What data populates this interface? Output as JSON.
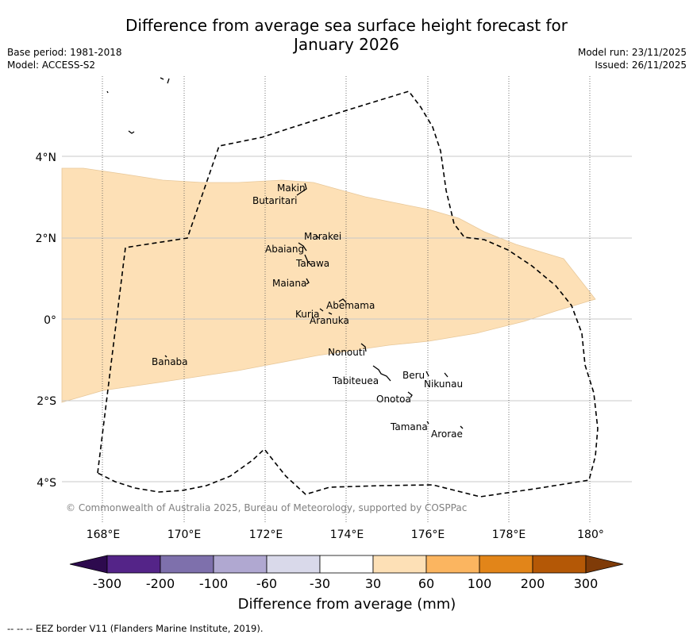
{
  "title": {
    "line1": "Difference from average sea surface height forecast for",
    "line2": "January 2026"
  },
  "meta_left": {
    "base_period": "Base period: 1981-2018",
    "model": "Model: ACCESS-S2"
  },
  "meta_right": {
    "model_run": "Model run: 23/11/2025",
    "issued": "Issued: 26/11/2025"
  },
  "axes": {
    "lon_ticks": [
      "168°E",
      "170°E",
      "172°E",
      "174°E",
      "176°E",
      "178°E",
      "180°"
    ],
    "lat_ticks": [
      "4°N",
      "2°N",
      "0°",
      "2°S",
      "4°S"
    ]
  },
  "islands": [
    {
      "name": "Makin"
    },
    {
      "name": "Butaritari"
    },
    {
      "name": "Marakei"
    },
    {
      "name": "Abaiang"
    },
    {
      "name": "Tarawa"
    },
    {
      "name": "Maiana"
    },
    {
      "name": "Abemama"
    },
    {
      "name": "Kuria"
    },
    {
      "name": "Aranuka"
    },
    {
      "name": "Nonouti"
    },
    {
      "name": "Banaba"
    },
    {
      "name": "Tabiteuea"
    },
    {
      "name": "Beru"
    },
    {
      "name": "Nikunau"
    },
    {
      "name": "Onotoa"
    },
    {
      "name": "Tamana"
    },
    {
      "name": "Arorae"
    }
  ],
  "copyright": "© Commonwealth of Australia 2025, Bureau of Meteorology, supported by COSPPac",
  "colorbar": {
    "label": "Difference from average (mm)",
    "ticks": [
      "-300",
      "-200",
      "-100",
      "-60",
      "-30",
      "30",
      "60",
      "100",
      "200",
      "300"
    ],
    "colors": {
      "extend_low": "#2d0a4e",
      "c1": "#542488",
      "c2": "#7e70ac",
      "c3": "#b0a8d1",
      "c4": "#d9d9ea",
      "c5": "#ffffff",
      "c6": "#fde0b6",
      "c7": "#fbb560",
      "c8": "#e28519",
      "c9": "#b45806",
      "extend_high": "#7f3b08"
    }
  },
  "shading_color": "#fde0b6",
  "footer": "-- -- -- EEZ border V11 (Flanders Marine Institute, 2019)."
}
